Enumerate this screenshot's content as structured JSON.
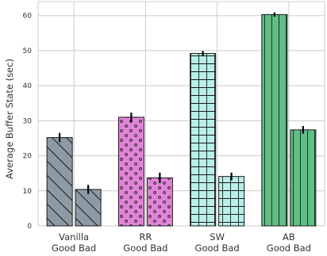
{
  "chart_data": {
    "type": "bar",
    "ylabel": "Average Buffer State (sec)",
    "xlabel": "",
    "title": "",
    "ylim": [
      0,
      64
    ],
    "yticks": [
      0,
      10,
      20,
      30,
      40,
      50,
      60
    ],
    "grid": true,
    "sublabels": [
      "Good",
      "Bad"
    ],
    "groups": [
      {
        "label": "Vanilla",
        "values": [
          25.2,
          10.4
        ],
        "errors": [
          1.3,
          1.3
        ],
        "color": "#8d9aa6",
        "pattern": "diagonal-lines"
      },
      {
        "label": "RR",
        "values": [
          31.0,
          13.7
        ],
        "errors": [
          1.3,
          1.5
        ],
        "color": "#e084d8",
        "pattern": "dots"
      },
      {
        "label": "SW",
        "values": [
          49.2,
          14.1
        ],
        "errors": [
          0.7,
          1.1
        ],
        "color": "#b8efe8",
        "pattern": "grid"
      },
      {
        "label": "AB",
        "values": [
          60.3,
          27.4
        ],
        "errors": [
          0.6,
          1.1
        ],
        "color": "#5fbf85",
        "pattern": "vertical-lines"
      }
    ]
  }
}
